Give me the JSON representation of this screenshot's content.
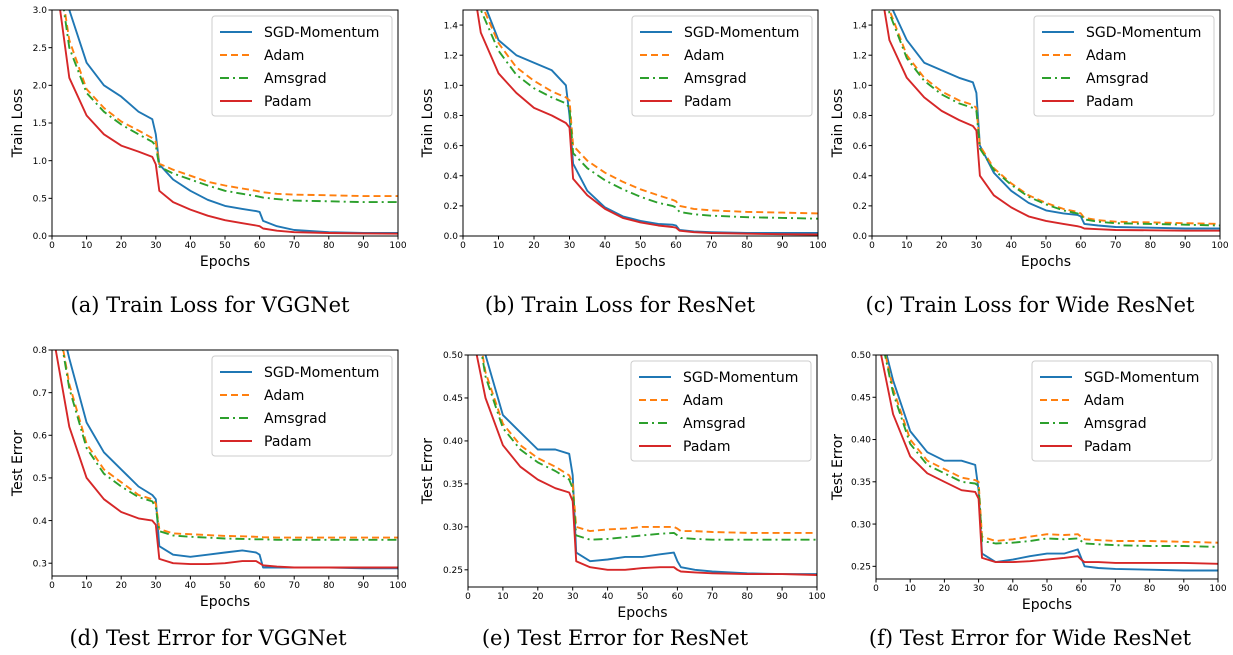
{
  "colors": {
    "SGD-Momentum": "#1f77b4",
    "Adam": "#ff7f0e",
    "Amsgrad": "#2ca02c",
    "Padam": "#d62728"
  },
  "chart_data": [
    {
      "type": "line",
      "id": "a",
      "caption": "(a) Train Loss for VGGNet",
      "xlabel": "Epochs",
      "ylabel": "Train Loss",
      "xlim": [
        0,
        100
      ],
      "ylim": [
        0,
        3.0
      ],
      "xticks": [
        "0",
        "10",
        "20",
        "30",
        "40",
        "50",
        "60",
        "70",
        "80",
        "90",
        "100"
      ],
      "yticks": [
        "0.0",
        "0.5",
        "1.0",
        "1.5",
        "2.0",
        "2.5",
        "3.0"
      ],
      "legend_position": "top-right",
      "grid": false,
      "x": [
        0,
        5,
        10,
        15,
        20,
        25,
        29,
        30,
        31,
        35,
        40,
        45,
        50,
        55,
        59,
        60,
        61,
        65,
        70,
        80,
        90,
        100
      ],
      "series": [
        {
          "name": "SGD-Momentum",
          "style": "solid",
          "values": [
            4.2,
            3.0,
            2.3,
            2.0,
            1.85,
            1.65,
            1.55,
            1.35,
            0.95,
            0.75,
            0.6,
            0.48,
            0.4,
            0.36,
            0.33,
            0.32,
            0.2,
            0.13,
            0.08,
            0.05,
            0.04,
            0.04
          ]
        },
        {
          "name": "Adam",
          "style": "dashed",
          "values": [
            4.1,
            2.6,
            1.95,
            1.7,
            1.52,
            1.4,
            1.3,
            1.25,
            0.96,
            0.88,
            0.8,
            0.72,
            0.67,
            0.63,
            0.6,
            0.59,
            0.58,
            0.56,
            0.55,
            0.54,
            0.53,
            0.53
          ]
        },
        {
          "name": "Amsgrad",
          "style": "dashdot",
          "values": [
            4.1,
            2.5,
            1.9,
            1.65,
            1.48,
            1.35,
            1.25,
            1.2,
            0.92,
            0.83,
            0.75,
            0.67,
            0.6,
            0.56,
            0.53,
            0.52,
            0.51,
            0.49,
            0.47,
            0.46,
            0.45,
            0.45
          ]
        },
        {
          "name": "Padam",
          "style": "solid",
          "values": [
            3.8,
            2.1,
            1.6,
            1.35,
            1.2,
            1.12,
            1.05,
            0.95,
            0.6,
            0.45,
            0.35,
            0.27,
            0.21,
            0.17,
            0.14,
            0.13,
            0.1,
            0.07,
            0.05,
            0.04,
            0.035,
            0.03
          ]
        }
      ]
    },
    {
      "type": "line",
      "id": "b",
      "caption": "(b) Train Loss for ResNet",
      "xlabel": "Epochs",
      "ylabel": "Train Loss",
      "xlim": [
        0,
        100
      ],
      "ylim": [
        0,
        1.5
      ],
      "xticks": [
        "0",
        "10",
        "20",
        "30",
        "40",
        "50",
        "60",
        "70",
        "80",
        "90",
        "100"
      ],
      "yticks": [
        "0.0",
        "0.2",
        "0.4",
        "0.6",
        "0.8",
        "1.0",
        "1.2",
        "1.4"
      ],
      "legend_position": "top-right",
      "grid": false,
      "x": [
        0,
        5,
        10,
        15,
        20,
        25,
        29,
        30,
        31,
        35,
        40,
        45,
        50,
        55,
        59,
        60,
        61,
        65,
        70,
        80,
        90,
        100
      ],
      "series": [
        {
          "name": "SGD-Momentum",
          "style": "solid",
          "values": [
            2.2,
            1.6,
            1.3,
            1.2,
            1.15,
            1.1,
            1.0,
            0.8,
            0.48,
            0.3,
            0.19,
            0.13,
            0.1,
            0.08,
            0.075,
            0.07,
            0.04,
            0.03,
            0.025,
            0.02,
            0.02,
            0.02
          ]
        },
        {
          "name": "Adam",
          "style": "dashed",
          "values": [
            2.2,
            1.55,
            1.28,
            1.12,
            1.03,
            0.96,
            0.92,
            0.9,
            0.6,
            0.5,
            0.42,
            0.36,
            0.31,
            0.27,
            0.24,
            0.23,
            0.2,
            0.18,
            0.17,
            0.16,
            0.155,
            0.15
          ]
        },
        {
          "name": "Amsgrad",
          "style": "dashdot",
          "values": [
            2.2,
            1.5,
            1.23,
            1.07,
            0.98,
            0.92,
            0.88,
            0.85,
            0.55,
            0.45,
            0.37,
            0.31,
            0.26,
            0.22,
            0.2,
            0.19,
            0.16,
            0.145,
            0.135,
            0.125,
            0.12,
            0.115
          ]
        },
        {
          "name": "Padam",
          "style": "solid",
          "values": [
            2.1,
            1.35,
            1.08,
            0.95,
            0.85,
            0.8,
            0.75,
            0.72,
            0.38,
            0.27,
            0.18,
            0.12,
            0.09,
            0.07,
            0.06,
            0.055,
            0.035,
            0.025,
            0.02,
            0.015,
            0.012,
            0.01
          ]
        }
      ]
    },
    {
      "type": "line",
      "id": "c",
      "caption": "(c) Train Loss for Wide ResNet",
      "xlabel": "Epochs",
      "ylabel": "Train Loss",
      "xlim": [
        0,
        100
      ],
      "ylim": [
        0,
        1.5
      ],
      "xticks": [
        "0",
        "10",
        "20",
        "30",
        "40",
        "50",
        "60",
        "70",
        "80",
        "90",
        "100"
      ],
      "yticks": [
        "0.0",
        "0.2",
        "0.4",
        "0.6",
        "0.8",
        "1.0",
        "1.2",
        "1.4"
      ],
      "legend_position": "top-right",
      "grid": false,
      "x": [
        0,
        5,
        10,
        15,
        20,
        25,
        29,
        30,
        31,
        35,
        40,
        45,
        50,
        55,
        59,
        60,
        61,
        65,
        70,
        80,
        90,
        100
      ],
      "series": [
        {
          "name": "SGD-Momentum",
          "style": "solid",
          "values": [
            2.2,
            1.55,
            1.3,
            1.15,
            1.1,
            1.05,
            1.02,
            0.95,
            0.6,
            0.42,
            0.3,
            0.22,
            0.17,
            0.15,
            0.14,
            0.13,
            0.08,
            0.07,
            0.06,
            0.055,
            0.05,
            0.05
          ]
        },
        {
          "name": "Adam",
          "style": "dashed",
          "values": [
            2.2,
            1.5,
            1.2,
            1.05,
            0.96,
            0.9,
            0.87,
            0.85,
            0.6,
            0.45,
            0.35,
            0.27,
            0.22,
            0.18,
            0.16,
            0.15,
            0.12,
            0.105,
            0.095,
            0.09,
            0.085,
            0.08
          ]
        },
        {
          "name": "Amsgrad",
          "style": "dashdot",
          "values": [
            2.2,
            1.48,
            1.18,
            1.03,
            0.94,
            0.88,
            0.85,
            0.83,
            0.58,
            0.44,
            0.34,
            0.26,
            0.21,
            0.17,
            0.15,
            0.14,
            0.11,
            0.095,
            0.085,
            0.08,
            0.075,
            0.07
          ]
        },
        {
          "name": "Padam",
          "style": "solid",
          "values": [
            2.0,
            1.3,
            1.05,
            0.92,
            0.83,
            0.77,
            0.73,
            0.7,
            0.4,
            0.27,
            0.19,
            0.13,
            0.1,
            0.08,
            0.065,
            0.06,
            0.05,
            0.045,
            0.04,
            0.038,
            0.035,
            0.035
          ]
        }
      ]
    },
    {
      "type": "line",
      "id": "d",
      "caption": "(d) Test Error for VGGNet",
      "xlabel": "Epochs",
      "ylabel": "Test Error",
      "xlim": [
        0,
        100
      ],
      "ylim": [
        0.27,
        0.8
      ],
      "xticks": [
        "0",
        "10",
        "20",
        "30",
        "40",
        "50",
        "60",
        "70",
        "80",
        "90",
        "100"
      ],
      "yticks": [
        "0.3",
        "0.4",
        "0.5",
        "0.6",
        "0.7",
        "0.8"
      ],
      "legend_position": "top-right",
      "grid": false,
      "x": [
        0,
        5,
        10,
        15,
        20,
        25,
        29,
        30,
        31,
        35,
        40,
        45,
        50,
        55,
        59,
        60,
        61,
        65,
        70,
        80,
        90,
        100
      ],
      "series": [
        {
          "name": "SGD-Momentum",
          "style": "solid",
          "values": [
            0.95,
            0.78,
            0.63,
            0.56,
            0.52,
            0.48,
            0.46,
            0.45,
            0.34,
            0.32,
            0.315,
            0.32,
            0.325,
            0.33,
            0.325,
            0.32,
            0.29,
            0.29,
            0.29,
            0.29,
            0.288,
            0.288
          ]
        },
        {
          "name": "Adam",
          "style": "dashed",
          "values": [
            0.95,
            0.72,
            0.58,
            0.52,
            0.49,
            0.46,
            0.45,
            0.44,
            0.38,
            0.37,
            0.368,
            0.366,
            0.364,
            0.363,
            0.362,
            0.362,
            0.361,
            0.36,
            0.36,
            0.36,
            0.36,
            0.36
          ]
        },
        {
          "name": "Amsgrad",
          "style": "dashdot",
          "values": [
            0.95,
            0.71,
            0.57,
            0.51,
            0.48,
            0.455,
            0.445,
            0.43,
            0.375,
            0.365,
            0.362,
            0.36,
            0.358,
            0.357,
            0.356,
            0.356,
            0.356,
            0.355,
            0.355,
            0.355,
            0.355,
            0.355
          ]
        },
        {
          "name": "Padam",
          "style": "solid",
          "values": [
            0.85,
            0.62,
            0.5,
            0.45,
            0.42,
            0.405,
            0.4,
            0.39,
            0.31,
            0.3,
            0.298,
            0.298,
            0.3,
            0.305,
            0.305,
            0.3,
            0.295,
            0.292,
            0.29,
            0.29,
            0.29,
            0.29
          ]
        }
      ]
    },
    {
      "type": "line",
      "id": "e",
      "caption": "(e) Test Error for ResNet",
      "xlabel": "Epochs",
      "ylabel": "Test Error",
      "xlim": [
        0,
        100
      ],
      "ylim": [
        0.23,
        0.5
      ],
      "xticks": [
        "0",
        "10",
        "20",
        "30",
        "40",
        "50",
        "60",
        "70",
        "80",
        "90",
        "100"
      ],
      "yticks": [
        "0.25",
        "0.30",
        "0.35",
        "0.40",
        "0.45",
        "0.50"
      ],
      "legend_position": "top-right",
      "grid": false,
      "x": [
        0,
        5,
        10,
        15,
        20,
        25,
        29,
        30,
        31,
        35,
        40,
        45,
        50,
        55,
        59,
        60,
        61,
        65,
        70,
        80,
        90,
        100
      ],
      "series": [
        {
          "name": "SGD-Momentum",
          "style": "solid",
          "values": [
            0.6,
            0.5,
            0.43,
            0.41,
            0.39,
            0.39,
            0.385,
            0.36,
            0.27,
            0.26,
            0.262,
            0.265,
            0.265,
            0.268,
            0.27,
            0.26,
            0.253,
            0.25,
            0.248,
            0.246,
            0.245,
            0.245
          ]
        },
        {
          "name": "Adam",
          "style": "dashed",
          "values": [
            0.6,
            0.48,
            0.42,
            0.395,
            0.38,
            0.37,
            0.36,
            0.35,
            0.3,
            0.295,
            0.297,
            0.298,
            0.3,
            0.3,
            0.3,
            0.298,
            0.295,
            0.295,
            0.294,
            0.293,
            0.293,
            0.293
          ]
        },
        {
          "name": "Amsgrad",
          "style": "dashdot",
          "values": [
            0.6,
            0.475,
            0.415,
            0.39,
            0.375,
            0.365,
            0.355,
            0.345,
            0.29,
            0.285,
            0.286,
            0.288,
            0.29,
            0.292,
            0.293,
            0.29,
            0.287,
            0.286,
            0.285,
            0.285,
            0.285,
            0.285
          ]
        },
        {
          "name": "Padam",
          "style": "solid",
          "values": [
            0.55,
            0.45,
            0.395,
            0.37,
            0.355,
            0.345,
            0.34,
            0.33,
            0.26,
            0.253,
            0.25,
            0.25,
            0.252,
            0.253,
            0.253,
            0.25,
            0.248,
            0.247,
            0.246,
            0.245,
            0.245,
            0.244
          ]
        }
      ]
    },
    {
      "type": "line",
      "id": "f",
      "caption": "(f) Test Error for Wide ResNet",
      "xlabel": "Epochs",
      "ylabel": "Test Error",
      "xlim": [
        0,
        100
      ],
      "ylim": [
        0.235,
        0.5
      ],
      "xticks": [
        "0",
        "10",
        "20",
        "30",
        "40",
        "50",
        "60",
        "70",
        "80",
        "90",
        "100"
      ],
      "yticks": [
        "0.25",
        "0.30",
        "0.35",
        "0.40",
        "0.45",
        "0.50"
      ],
      "legend_position": "top-right",
      "grid": false,
      "x": [
        0,
        5,
        10,
        15,
        20,
        25,
        29,
        30,
        31,
        35,
        40,
        45,
        50,
        55,
        59,
        60,
        61,
        65,
        70,
        80,
        90,
        100
      ],
      "series": [
        {
          "name": "SGD-Momentum",
          "style": "solid",
          "values": [
            0.55,
            0.47,
            0.41,
            0.385,
            0.375,
            0.375,
            0.37,
            0.34,
            0.265,
            0.255,
            0.258,
            0.262,
            0.265,
            0.265,
            0.27,
            0.26,
            0.25,
            0.248,
            0.247,
            0.246,
            0.245,
            0.245
          ]
        },
        {
          "name": "Adam",
          "style": "dashed",
          "values": [
            0.55,
            0.46,
            0.4,
            0.375,
            0.365,
            0.355,
            0.352,
            0.35,
            0.285,
            0.28,
            0.282,
            0.285,
            0.288,
            0.287,
            0.288,
            0.285,
            0.282,
            0.281,
            0.28,
            0.28,
            0.279,
            0.278
          ]
        },
        {
          "name": "Amsgrad",
          "style": "dashdot",
          "values": [
            0.55,
            0.455,
            0.395,
            0.37,
            0.36,
            0.35,
            0.348,
            0.345,
            0.28,
            0.277,
            0.278,
            0.28,
            0.283,
            0.282,
            0.283,
            0.28,
            0.277,
            0.276,
            0.275,
            0.274,
            0.274,
            0.273
          ]
        },
        {
          "name": "Padam",
          "style": "solid",
          "values": [
            0.53,
            0.43,
            0.38,
            0.36,
            0.35,
            0.34,
            0.338,
            0.33,
            0.26,
            0.255,
            0.255,
            0.256,
            0.258,
            0.26,
            0.262,
            0.258,
            0.255,
            0.255,
            0.254,
            0.254,
            0.254,
            0.253
          ]
        }
      ]
    }
  ]
}
